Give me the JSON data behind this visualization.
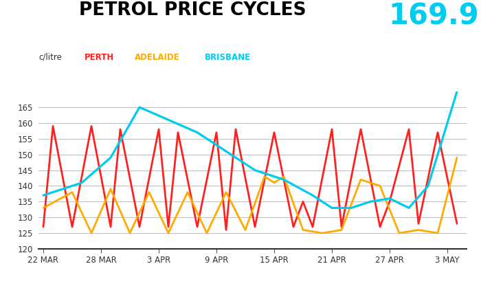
{
  "title": "PETROL PRICE CYCLES",
  "price_annotation": "169.9",
  "clabel": "c/litre",
  "background_color": "#ffffff",
  "title_color": "#000000",
  "title_fontsize": 19,
  "price_color": "#00ccee",
  "price_fontsize": 30,
  "ylim": [
    120,
    170
  ],
  "yticks": [
    120,
    125,
    130,
    135,
    140,
    145,
    150,
    155,
    160,
    165
  ],
  "grid_color": "#bbbbbb",
  "perth_color": "#ff2020",
  "adelaide_color": "#ffaa00",
  "brisbane_color": "#00ccee",
  "x_tick_labels": [
    "22 MAR",
    "28 MAR",
    "3 APR",
    "9 APR",
    "15 APR",
    "21 APR",
    "27 APR",
    "3 MAY"
  ],
  "x_tick_pos": [
    0,
    6,
    12,
    18,
    24,
    30,
    36,
    42
  ],
  "xlim": [
    -0.5,
    44
  ],
  "perth_x": [
    0,
    1,
    3,
    5,
    7,
    8,
    10,
    12,
    13,
    14,
    16,
    18,
    19,
    20,
    22,
    24,
    26,
    27,
    28,
    30,
    31,
    33,
    35,
    36,
    38,
    39,
    41,
    43
  ],
  "perth_y": [
    127,
    159,
    127,
    159,
    127,
    158,
    127,
    158,
    127,
    157,
    127,
    157,
    126,
    158,
    127,
    157,
    127,
    135,
    127,
    158,
    127,
    158,
    127,
    135,
    158,
    128,
    157,
    128
  ],
  "adelaide_x": [
    0,
    3,
    5,
    7,
    9,
    11,
    13,
    15,
    17,
    19,
    21,
    23,
    24,
    25,
    27,
    29,
    31,
    33,
    35,
    37,
    39,
    41,
    43
  ],
  "adelaide_y": [
    133,
    138,
    125,
    139,
    125,
    138,
    125,
    138,
    125,
    138,
    126,
    143,
    141,
    143,
    126,
    125,
    126,
    142,
    140,
    125,
    126,
    125,
    149
  ],
  "brisbane_x": [
    0,
    2,
    4,
    7,
    10,
    13,
    16,
    19,
    22,
    25,
    28,
    30,
    32,
    33,
    34,
    36,
    38,
    40,
    41,
    42,
    43
  ],
  "brisbane_y": [
    137,
    139,
    141,
    149,
    165,
    161,
    157,
    151,
    145,
    142,
    137,
    133,
    133,
    134,
    135,
    136,
    133,
    140,
    150,
    160,
    170
  ]
}
